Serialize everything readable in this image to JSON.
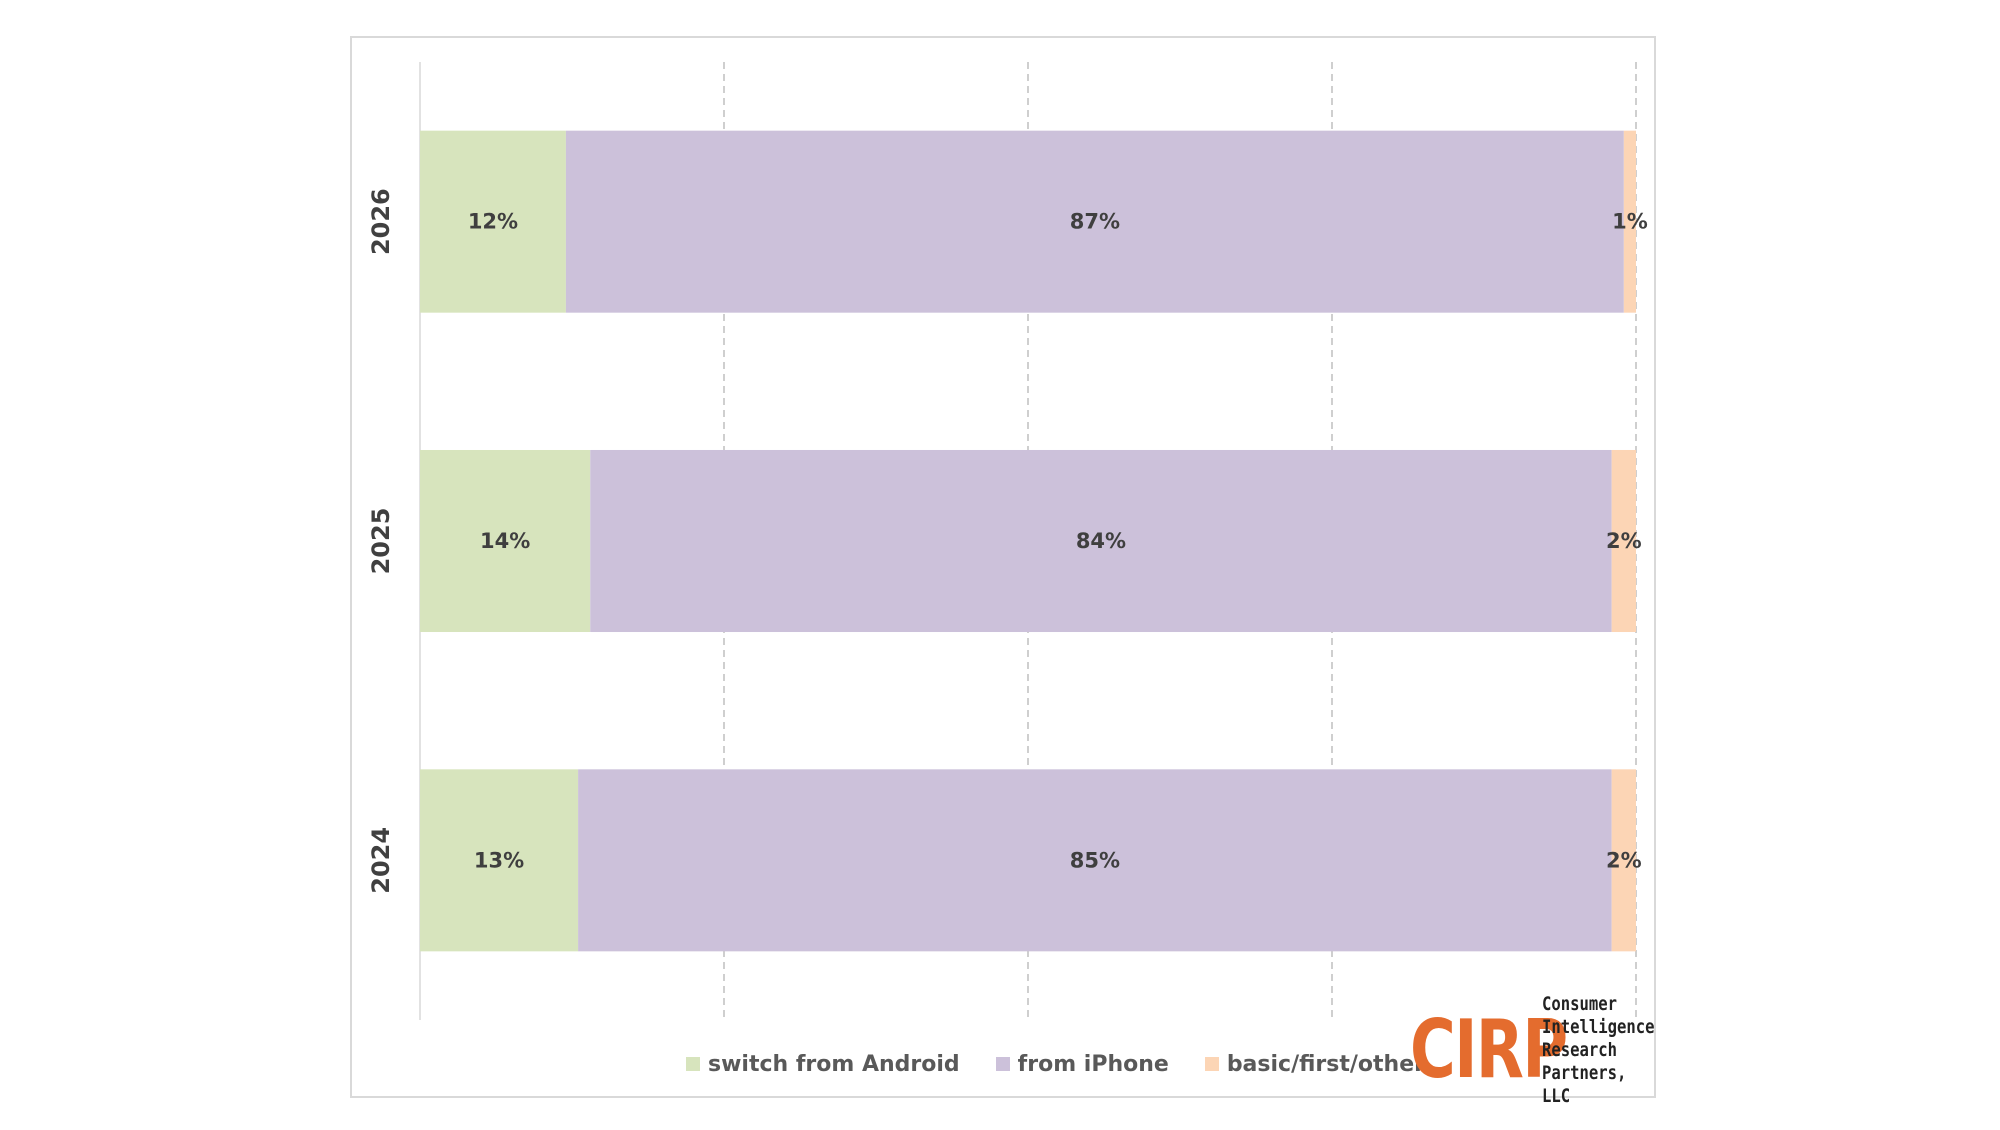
{
  "chart_data": {
    "type": "bar",
    "orientation": "horizontal",
    "stacked": true,
    "normalized": true,
    "categories": [
      "2026",
      "2025",
      "2024"
    ],
    "series": [
      {
        "name": "switch from Android",
        "values": [
          12,
          14,
          13
        ],
        "labels": [
          "12%",
          "14%",
          "13%"
        ],
        "color": "#d7e4bd"
      },
      {
        "name": "from iPhone",
        "values": [
          87,
          84,
          85
        ],
        "labels": [
          "87%",
          "84%",
          "85%"
        ],
        "color": "#ccc1da"
      },
      {
        "name": "basic/first/other",
        "values": [
          1,
          2,
          2
        ],
        "labels": [
          "1%",
          "2%",
          "2%"
        ],
        "color": "#fcd5b5"
      }
    ],
    "xlim": [
      0,
      100
    ],
    "grid": "vertical dashed",
    "legend_position": "bottom"
  },
  "logo": {
    "mark": "CIRP",
    "mark_color": "#e46c2e",
    "lines": [
      "Consumer",
      "Intelligence",
      "Research",
      "Partners, LLC"
    ]
  }
}
